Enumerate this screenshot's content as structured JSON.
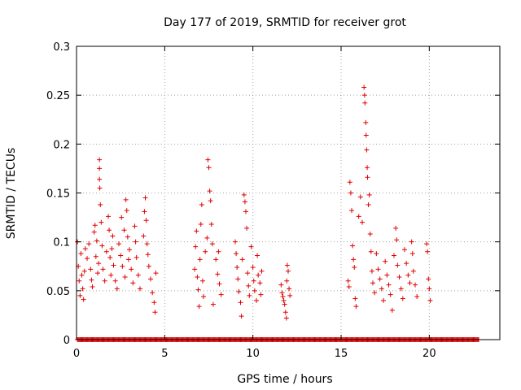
{
  "chart_data": {
    "type": "scatter",
    "title": "Day 177 of 2019, SRMTID for receiver grot",
    "xlabel": "GPS time / hours",
    "ylabel": "SRMTID / TECUs",
    "xlim": [
      0,
      24.0
    ],
    "ylim": [
      0,
      0.3
    ],
    "x_ticks": [
      0,
      5,
      10,
      15,
      20
    ],
    "x_tick_labels": [
      "0",
      "5",
      "10",
      "15",
      "20"
    ],
    "y_ticks": [
      0,
      0.05,
      0.1,
      0.15,
      0.2,
      0.25,
      0.3
    ],
    "y_tick_labels": [
      "0",
      "0.05",
      "0.1",
      "0.15",
      "0.2",
      "0.25",
      "0.3"
    ],
    "grid": true,
    "marker": "plus",
    "series": [
      {
        "name": "SRMTID",
        "color": "#e00000",
        "points": [
          [
            0.05,
            0.1
          ],
          [
            0.1,
            0.075
          ],
          [
            0.15,
            0.06
          ],
          [
            0.2,
            0.045
          ],
          [
            0.25,
            0.088
          ],
          [
            0.3,
            0.066
          ],
          [
            0.35,
            0.052
          ],
          [
            0.4,
            0.041
          ],
          [
            0.45,
            0.07
          ],
          [
            0.5,
            0.093
          ],
          [
            0.6,
            0.083
          ],
          [
            0.7,
            0.098
          ],
          [
            0.8,
            0.072
          ],
          [
            0.85,
            0.061
          ],
          [
            0.9,
            0.054
          ],
          [
            1.0,
            0.11
          ],
          [
            1.05,
            0.117
          ],
          [
            1.1,
            0.085
          ],
          [
            1.15,
            0.101
          ],
          [
            1.2,
            0.068
          ],
          [
            1.25,
            0.078
          ],
          [
            1.3,
            0.184
          ],
          [
            1.3,
            0.175
          ],
          [
            1.3,
            0.164
          ],
          [
            1.32,
            0.155
          ],
          [
            1.35,
            0.138
          ],
          [
            1.4,
            0.12
          ],
          [
            1.45,
            0.096
          ],
          [
            1.5,
            0.072
          ],
          [
            1.6,
            0.06
          ],
          [
            1.7,
            0.09
          ],
          [
            1.8,
            0.126
          ],
          [
            1.85,
            0.112
          ],
          [
            1.9,
            0.084
          ],
          [
            1.95,
            0.066
          ],
          [
            2.0,
            0.093
          ],
          [
            2.05,
            0.106
          ],
          [
            2.1,
            0.076
          ],
          [
            2.2,
            0.06
          ],
          [
            2.3,
            0.052
          ],
          [
            2.4,
            0.098
          ],
          [
            2.5,
            0.086
          ],
          [
            2.55,
            0.125
          ],
          [
            2.6,
            0.075
          ],
          [
            2.7,
            0.112
          ],
          [
            2.75,
            0.064
          ],
          [
            2.8,
            0.143
          ],
          [
            2.85,
            0.132
          ],
          [
            2.9,
            0.105
          ],
          [
            2.95,
            0.082
          ],
          [
            3.0,
            0.092
          ],
          [
            3.1,
            0.072
          ],
          [
            3.2,
            0.058
          ],
          [
            3.3,
            0.116
          ],
          [
            3.35,
            0.1
          ],
          [
            3.4,
            0.084
          ],
          [
            3.5,
            0.066
          ],
          [
            3.6,
            0.052
          ],
          [
            3.8,
            0.106
          ],
          [
            3.85,
            0.131
          ],
          [
            3.9,
            0.145
          ],
          [
            3.95,
            0.122
          ],
          [
            4.0,
            0.098
          ],
          [
            4.05,
            0.087
          ],
          [
            4.1,
            0.075
          ],
          [
            4.2,
            0.062
          ],
          [
            4.3,
            0.048
          ],
          [
            4.4,
            0.038
          ],
          [
            4.45,
            0.028
          ],
          [
            4.5,
            0.068
          ],
          [
            6.7,
            0.072
          ],
          [
            6.75,
            0.095
          ],
          [
            6.8,
            0.111
          ],
          [
            6.85,
            0.064
          ],
          [
            6.9,
            0.051
          ],
          [
            6.95,
            0.034
          ],
          [
            7.0,
            0.082
          ],
          [
            7.05,
            0.118
          ],
          [
            7.1,
            0.138
          ],
          [
            7.15,
            0.06
          ],
          [
            7.2,
            0.044
          ],
          [
            7.3,
            0.09
          ],
          [
            7.4,
            0.104
          ],
          [
            7.45,
            0.184
          ],
          [
            7.5,
            0.176
          ],
          [
            7.55,
            0.152
          ],
          [
            7.6,
            0.142
          ],
          [
            7.65,
            0.118
          ],
          [
            7.7,
            0.098
          ],
          [
            7.75,
            0.036
          ],
          [
            7.9,
            0.082
          ],
          [
            8.0,
            0.067
          ],
          [
            8.05,
            0.09
          ],
          [
            8.1,
            0.057
          ],
          [
            8.2,
            0.046
          ],
          [
            9.0,
            0.1
          ],
          [
            9.05,
            0.088
          ],
          [
            9.1,
            0.074
          ],
          [
            9.15,
            0.062
          ],
          [
            9.2,
            0.049
          ],
          [
            9.3,
            0.038
          ],
          [
            9.35,
            0.024
          ],
          [
            9.4,
            0.082
          ],
          [
            9.5,
            0.148
          ],
          [
            9.55,
            0.141
          ],
          [
            9.6,
            0.131
          ],
          [
            9.65,
            0.114
          ],
          [
            9.7,
            0.068
          ],
          [
            9.75,
            0.055
          ],
          [
            9.8,
            0.045
          ],
          [
            9.9,
            0.095
          ],
          [
            10.0,
            0.074
          ],
          [
            10.05,
            0.06
          ],
          [
            10.1,
            0.05
          ],
          [
            10.2,
            0.04
          ],
          [
            10.25,
            0.086
          ],
          [
            10.3,
            0.066
          ],
          [
            10.4,
            0.058
          ],
          [
            10.45,
            0.046
          ],
          [
            10.5,
            0.07
          ],
          [
            11.6,
            0.056
          ],
          [
            11.65,
            0.048
          ],
          [
            11.7,
            0.044
          ],
          [
            11.75,
            0.04
          ],
          [
            11.8,
            0.036
          ],
          [
            11.85,
            0.028
          ],
          [
            11.9,
            0.022
          ],
          [
            11.92,
            0.06
          ],
          [
            11.95,
            0.076
          ],
          [
            12.0,
            0.07
          ],
          [
            12.05,
            0.052
          ],
          [
            12.1,
            0.045
          ],
          [
            15.4,
            0.06
          ],
          [
            15.45,
            0.054
          ],
          [
            15.5,
            0.161
          ],
          [
            15.55,
            0.15
          ],
          [
            15.6,
            0.132
          ],
          [
            15.65,
            0.096
          ],
          [
            15.7,
            0.082
          ],
          [
            15.75,
            0.074
          ],
          [
            15.8,
            0.042
          ],
          [
            15.85,
            0.034
          ],
          [
            16.0,
            0.126
          ],
          [
            16.1,
            0.146
          ],
          [
            16.2,
            0.12
          ],
          [
            16.3,
            0.258
          ],
          [
            16.33,
            0.25
          ],
          [
            16.35,
            0.242
          ],
          [
            16.4,
            0.222
          ],
          [
            16.42,
            0.209
          ],
          [
            16.45,
            0.194
          ],
          [
            16.48,
            0.176
          ],
          [
            16.5,
            0.166
          ],
          [
            16.55,
            0.138
          ],
          [
            16.6,
            0.148
          ],
          [
            16.65,
            0.108
          ],
          [
            16.7,
            0.09
          ],
          [
            16.75,
            0.07
          ],
          [
            16.8,
            0.058
          ],
          [
            16.9,
            0.048
          ],
          [
            17.0,
            0.088
          ],
          [
            17.1,
            0.072
          ],
          [
            17.2,
            0.062
          ],
          [
            17.3,
            0.052
          ],
          [
            17.4,
            0.04
          ],
          [
            17.5,
            0.08
          ],
          [
            17.6,
            0.066
          ],
          [
            17.7,
            0.056
          ],
          [
            17.8,
            0.046
          ],
          [
            17.9,
            0.03
          ],
          [
            18.0,
            0.086
          ],
          [
            18.1,
            0.114
          ],
          [
            18.15,
            0.102
          ],
          [
            18.2,
            0.076
          ],
          [
            18.3,
            0.064
          ],
          [
            18.4,
            0.052
          ],
          [
            18.5,
            0.042
          ],
          [
            18.6,
            0.092
          ],
          [
            18.7,
            0.078
          ],
          [
            18.8,
            0.066
          ],
          [
            18.9,
            0.058
          ],
          [
            19.0,
            0.1
          ],
          [
            19.05,
            0.088
          ],
          [
            19.1,
            0.07
          ],
          [
            19.2,
            0.056
          ],
          [
            19.3,
            0.044
          ],
          [
            19.85,
            0.098
          ],
          [
            19.9,
            0.09
          ],
          [
            19.95,
            0.062
          ],
          [
            20.0,
            0.052
          ],
          [
            20.05,
            0.04
          ]
        ]
      },
      {
        "name": "zero-level",
        "color": "#e00000",
        "x_range": [
          0.05,
          22.8
        ],
        "step": 0.05,
        "y": 0
      }
    ]
  }
}
